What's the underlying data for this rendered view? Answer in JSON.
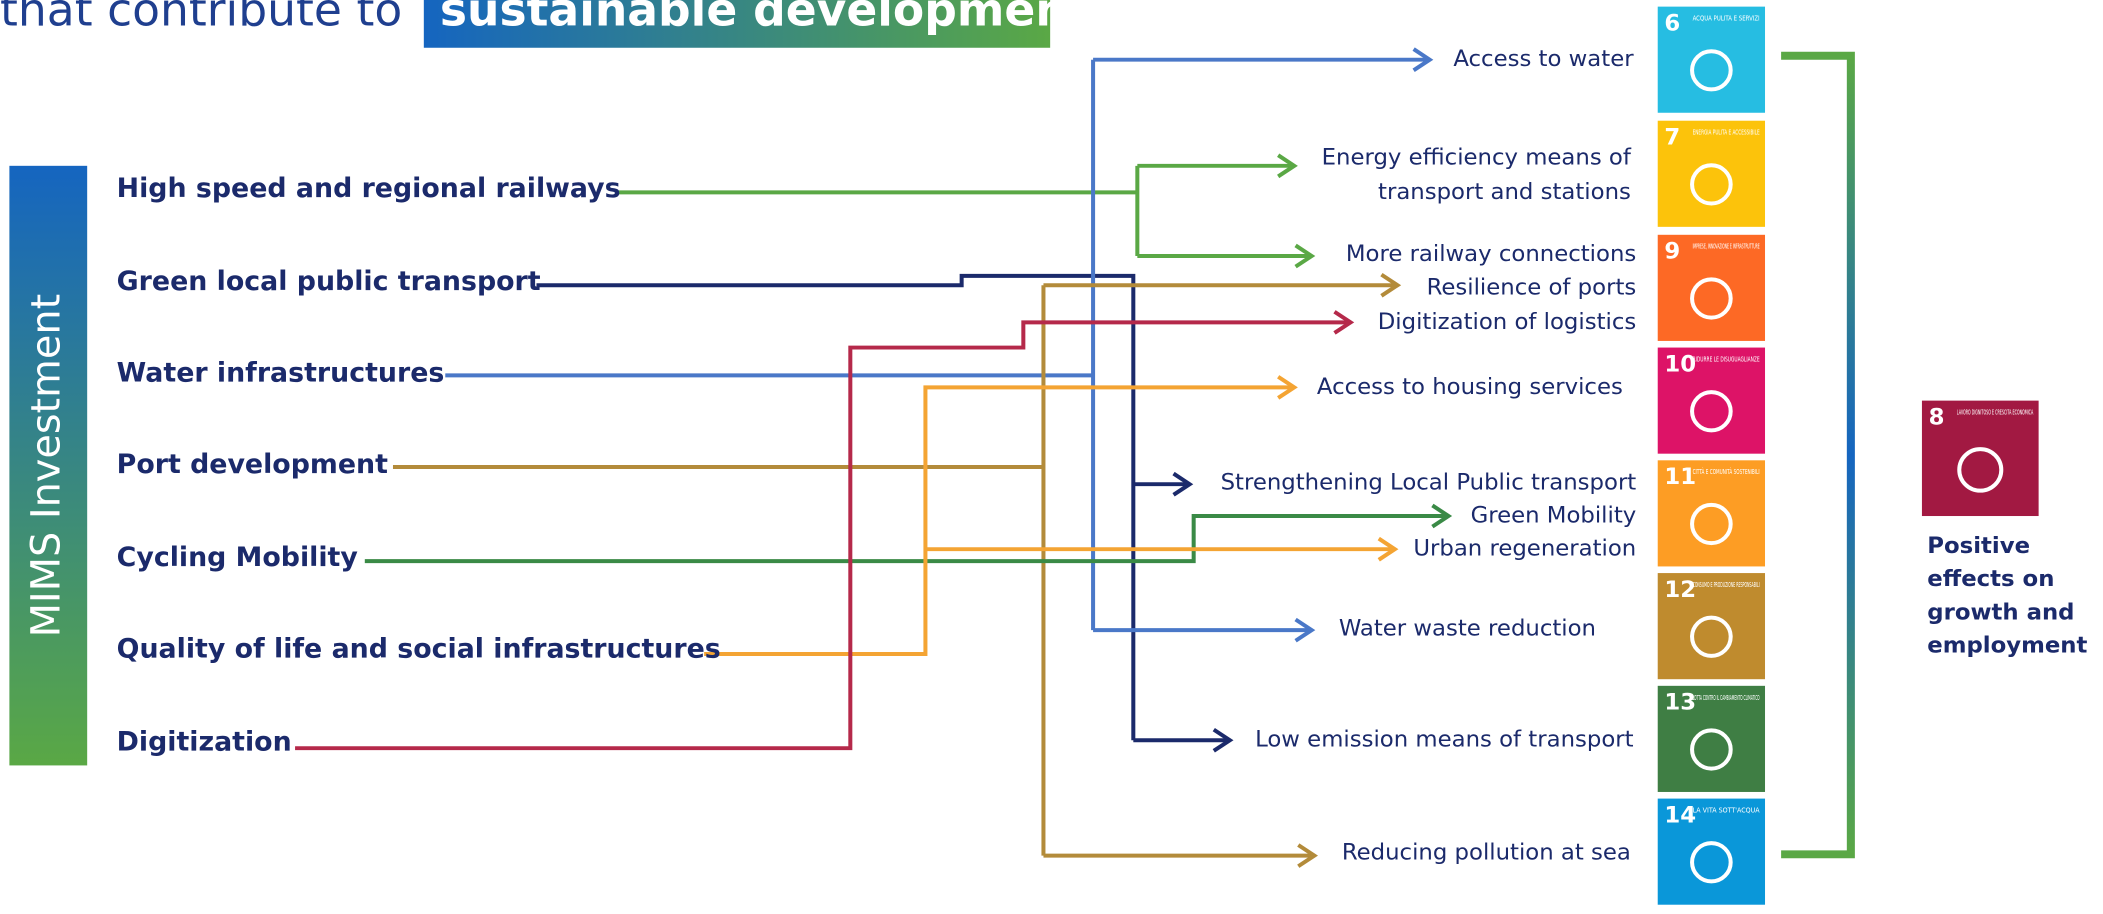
{
  "title": {
    "lead": "that contribute to",
    "highlight": "sustainable development"
  },
  "sidebar": "MIMS Investment",
  "investments": [
    "High speed and regional railways",
    "Green local public transport",
    "Water infrastructures",
    "Port development",
    "Cycling Mobility",
    "Quality of life and social infrastructures",
    "Digitization"
  ],
  "outcomes": [
    [
      "Access to water"
    ],
    [
      "Energy efficiency means of",
      "transport and stations"
    ],
    [
      "More railway connections"
    ],
    [
      "Resilience of ports"
    ],
    [
      "Digitization of logistics"
    ],
    [
      "Access to housing services"
    ],
    [
      "Strengthening Local Public transport"
    ],
    [
      "Green Mobility"
    ],
    [
      "Urban regeneration"
    ],
    [
      "Water waste reduction"
    ],
    [
      "Low emission means of transport"
    ],
    [
      "Reducing pollution at sea"
    ]
  ],
  "goals": [
    {
      "number": "6",
      "label": "ACQUA PULITA E SERVIZI"
    },
    {
      "number": "7",
      "label": "ENERGIA PULITA E ACCESSIBILE"
    },
    {
      "number": "9",
      "label": "IMPRESE, INNOVAZIONE E INFRASTRUTTURE"
    },
    {
      "number": "10",
      "label": "RIDURRE LE DISUGUAGLIANZE"
    },
    {
      "number": "11",
      "label": "CITTÀ E COMUNITÀ SOSTENIBILI"
    },
    {
      "number": "12",
      "label": "CONSUMO E PRODUZIONE RESPONSABILI"
    },
    {
      "number": "13",
      "label": "LOTTA CONTRO IL CAMBIAMENTO CLIMATICO"
    },
    {
      "number": "14",
      "label": "LA VITA SOTT'ACQUA"
    }
  ],
  "effect": {
    "goal": {
      "number": "8",
      "label": "LAVORO DIGNITOSO E CRESCITA ECONOMICA"
    },
    "text": [
      "Positive",
      "effects on",
      "growth and",
      "employment"
    ]
  }
}
